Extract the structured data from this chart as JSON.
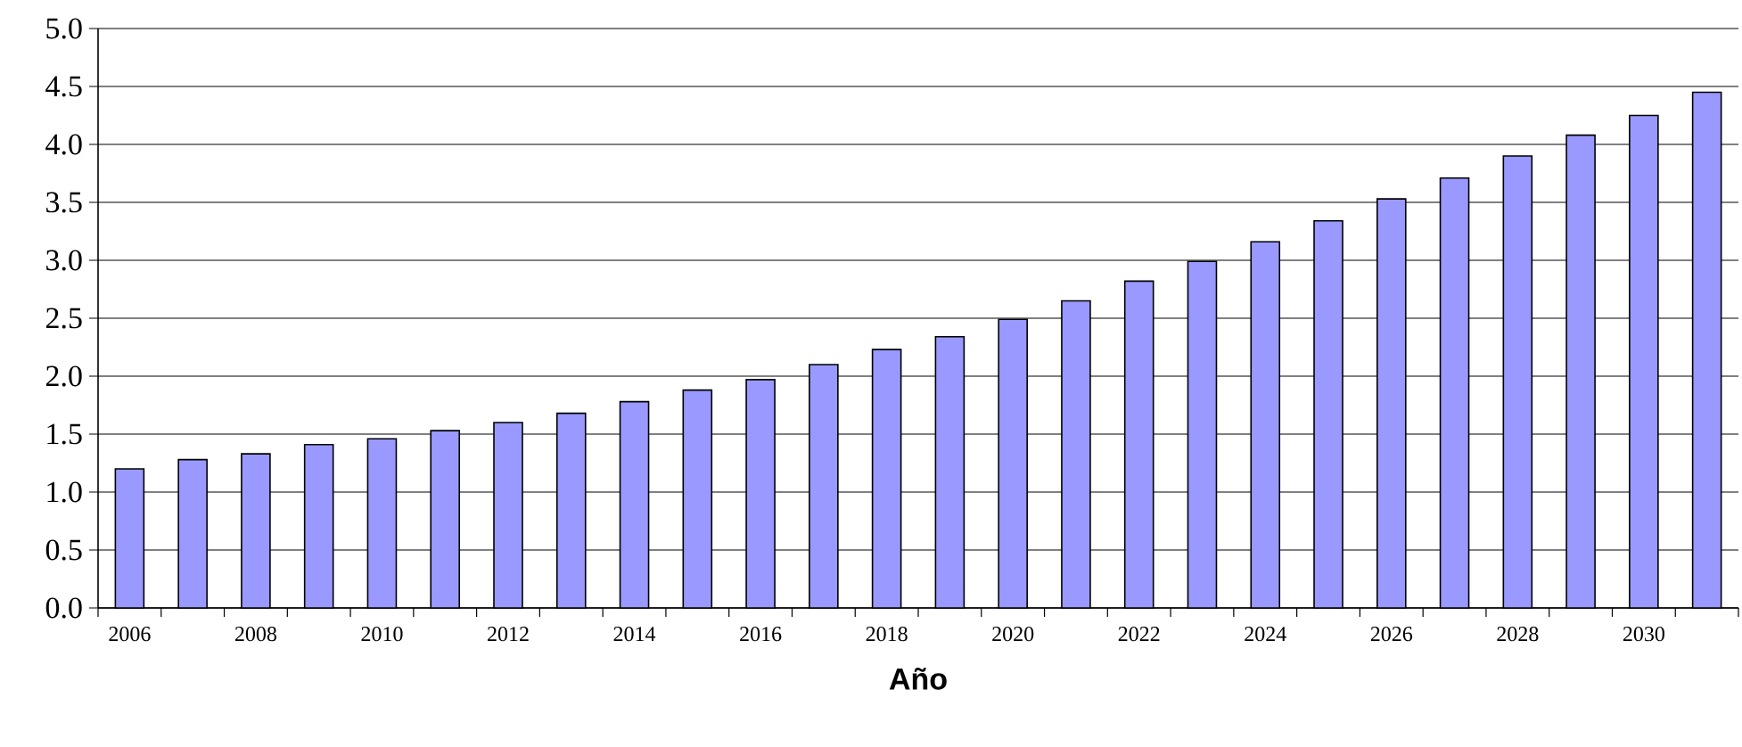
{
  "chart_data": {
    "type": "bar",
    "xlabel": "Año",
    "categories": [
      "2006",
      null,
      "2008",
      null,
      "2010",
      null,
      "2012",
      null,
      "2014",
      null,
      "2016",
      null,
      "2018",
      null,
      "2020",
      null,
      "2022",
      null,
      "2024",
      null,
      "2026",
      null,
      "2028",
      null,
      "2030",
      null
    ],
    "values": [
      1.2,
      1.28,
      1.33,
      1.41,
      1.46,
      1.53,
      1.6,
      1.68,
      1.78,
      1.88,
      1.97,
      2.1,
      2.23,
      2.34,
      2.49,
      2.65,
      2.82,
      2.99,
      3.16,
      3.34,
      3.53,
      3.71,
      3.9,
      4.08,
      4.25,
      4.45
    ],
    "color": "#9999ff",
    "ylim": [
      0,
      5
    ],
    "yticks": [
      {
        "value": 0,
        "label": "0.0"
      },
      {
        "value": 0.5,
        "label": "0.5"
      },
      {
        "value": 1,
        "label": "1.0"
      },
      {
        "value": 1.5,
        "label": "1.5"
      },
      {
        "value": 2,
        "label": "2.0"
      },
      {
        "value": 2.5,
        "label": "2.5"
      },
      {
        "value": 3,
        "label": "3.0"
      },
      {
        "value": 3.5,
        "label": "3.5"
      },
      {
        "value": 4,
        "label": "4.0"
      },
      {
        "value": 4.5,
        "label": "4.5"
      },
      {
        "value": 5,
        "label": "5.0"
      }
    ],
    "grid": "y"
  }
}
